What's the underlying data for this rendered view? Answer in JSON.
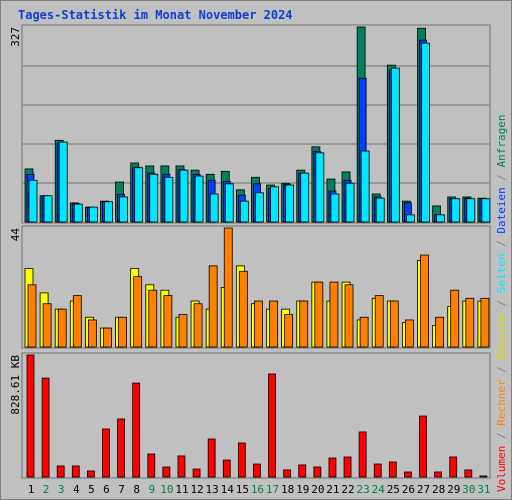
{
  "title": "Tages-Statistik im Monat November 2024",
  "legend_separator": " / ",
  "chart_data": [
    {
      "type": "bar",
      "ylim": [
        0,
        327
      ],
      "yticks": [
        327
      ],
      "grid": true,
      "series": [
        {
          "name": "Anfragen",
          "color": "#00805c",
          "values": [
            89,
            44,
            137,
            32,
            25,
            35,
            67,
            99,
            94,
            94,
            94,
            87,
            80,
            85,
            54,
            75,
            62,
            65,
            87,
            126,
            72,
            84,
            327,
            47,
            263,
            35,
            325,
            27,
            42,
            42,
            40
          ]
        },
        {
          "name": "Dateien",
          "color": "#0040ff",
          "values": [
            80,
            44,
            132,
            31,
            24,
            34,
            46,
            92,
            82,
            80,
            88,
            80,
            70,
            68,
            45,
            64,
            56,
            63,
            82,
            118,
            52,
            70,
            241,
            42,
            255,
            32,
            305,
            12,
            39,
            40,
            39
          ]
        },
        {
          "name": "Seiten",
          "color": "#00e8ff",
          "values": [
            70,
            44,
            134,
            30,
            25,
            34,
            42,
            91,
            80,
            75,
            87,
            77,
            47,
            64,
            35,
            49,
            59,
            62,
            82,
            116,
            47,
            65,
            119,
            40,
            258,
            12,
            300,
            12,
            39,
            39,
            39
          ]
        }
      ]
    },
    {
      "type": "bar",
      "ylim": [
        0,
        44
      ],
      "yticks": [
        44
      ],
      "grid": false,
      "series": [
        {
          "name": "Besuche",
          "color": "#ffff00",
          "values": [
            29,
            20,
            14,
            17,
            11,
            7,
            11,
            29,
            23,
            21,
            11,
            17,
            14,
            22,
            30,
            16,
            14,
            14,
            17,
            24,
            17,
            24,
            10,
            18,
            17,
            9,
            32,
            8,
            15,
            17,
            17
          ]
        },
        {
          "name": "Rechner",
          "color": "#ff8000",
          "values": [
            23,
            16,
            14,
            19,
            10,
            7,
            11,
            26,
            21,
            19,
            12,
            16,
            30,
            44,
            28,
            17,
            17,
            12,
            17,
            24,
            24,
            23,
            11,
            19,
            17,
            10,
            34,
            11,
            21,
            18,
            18
          ]
        }
      ]
    },
    {
      "type": "bar",
      "ylim": [
        0,
        828.61
      ],
      "yticks": [
        {
          "value": 828.61,
          "label": "828.61 KB"
        }
      ],
      "grid": false,
      "categories": [
        "1",
        "2",
        "3",
        "4",
        "5",
        "6",
        "7",
        "8",
        "9",
        "10",
        "11",
        "12",
        "13",
        "14",
        "15",
        "16",
        "17",
        "18",
        "19",
        "20",
        "21",
        "22",
        "23",
        "24",
        "25",
        "26",
        "27",
        "28",
        "29",
        "30",
        "31"
      ],
      "category_label_colors": [
        "#000000",
        "#008040",
        "#008040",
        "#000000",
        "#000000",
        "#000000",
        "#000000",
        "#000000",
        "#008040",
        "#008040",
        "#000000",
        "#000000",
        "#000000",
        "#000000",
        "#000000",
        "#008040",
        "#008040",
        "#000000",
        "#000000",
        "#000000",
        "#000000",
        "#000000",
        "#008040",
        "#008040",
        "#000000",
        "#000000",
        "#000000",
        "#000000",
        "#000000",
        "#008040",
        "#008040"
      ],
      "series": [
        {
          "name": "Volumen",
          "color": "#ff0000",
          "values": [
            828.61,
            672,
            75,
            75,
            41,
            326,
            394,
            638,
            156,
            68,
            143,
            54,
            258,
            115,
            231,
            88,
            700,
            48,
            82,
            68,
            129,
            136,
            306,
            88,
            102,
            34,
            414,
            34,
            136,
            48,
            7
          ]
        }
      ]
    }
  ]
}
